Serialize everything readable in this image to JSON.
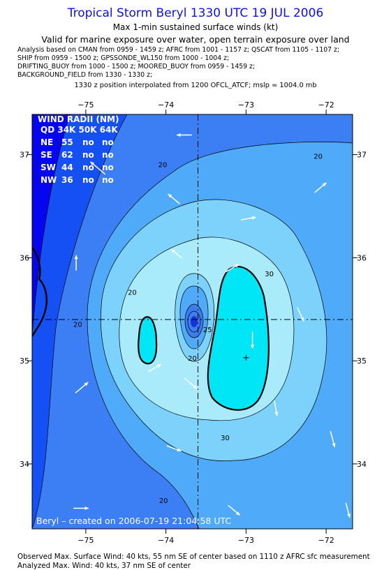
{
  "header": {
    "title": "Tropical Storm Beryl 1330 UTC 19 JUL 2006",
    "subtitle": "Max 1-min sustained surface winds (kt)",
    "validity": "Valid for marine exposure over water, open terrain exposure over land",
    "analysis_lines": [
      "Analysis based on  CMAN from 0959 - 1459 z;  AFRC from 1001 - 1157 z;  QSCAT from 1105 - 1107 z;",
      "SHIP from 0959 - 1500 z;  GPSSONDE_WL150 from 1000 - 1004 z;",
      "DRIFTING_BUOY from 1000 - 1500 z;  MOORED_BUOY from 0959 - 1459 z;",
      "BACKGROUND_FIELD from 1330 - 1330 z;"
    ],
    "position_note": "1330 z position interpolated from 1200 OFCL_ATCF; mslp = 1004.0 mb"
  },
  "map": {
    "lon_range": [
      -75.67,
      -71.67
    ],
    "lat_range": [
      33.37,
      37.39
    ],
    "lon_ticks": [
      -75,
      -74,
      -73,
      -72
    ],
    "lat_ticks": [
      37,
      36,
      35,
      34
    ],
    "lon_tick_labels": [
      "−75",
      "−74",
      "−73",
      "−72"
    ],
    "lat_tick_labels": [
      "37",
      "36",
      "35",
      "34"
    ],
    "storm_center": {
      "lon": -73.6,
      "lat": 35.4
    },
    "max_wind_marker": {
      "lon": -73.0,
      "lat": 35.03
    },
    "colors": {
      "deep": "#0505f0",
      "lt10": "#1550f5",
      "c10_20": "#3c7ff5",
      "c20_25": "#4faafa",
      "c25_30": "#7cd2fb",
      "c30_35": "#a9eafb",
      "ge35": "#00e6f6",
      "core": "#3a7df0",
      "eye": "#1733d6"
    },
    "contour_labels": [
      {
        "text": "20",
        "lon": -74.04,
        "lat": 36.88
      },
      {
        "text": "20",
        "lon": -72.1,
        "lat": 36.96
      },
      {
        "text": "20",
        "lon": -74.42,
        "lat": 35.64
      },
      {
        "text": "20",
        "lon": -75.1,
        "lat": 35.33
      },
      {
        "text": "20",
        "lon": -73.67,
        "lat": 35.0
      },
      {
        "text": "25",
        "lon": -73.48,
        "lat": 35.28
      },
      {
        "text": "30",
        "lon": -72.71,
        "lat": 35.82
      },
      {
        "text": "30",
        "lon": -73.26,
        "lat": 34.23
      },
      {
        "text": "20",
        "lon": -74.03,
        "lat": 33.62
      }
    ],
    "wind_vectors": [
      {
        "lon": -75.12,
        "lat": 35.95,
        "angle": 90,
        "len": 22
      },
      {
        "lon": -74.85,
        "lat": 36.87,
        "angle": 140,
        "len": 28
      },
      {
        "lon": -73.77,
        "lat": 37.19,
        "angle": 180,
        "len": 22
      },
      {
        "lon": -73.9,
        "lat": 36.57,
        "angle": 140,
        "len": 22
      },
      {
        "lon": -72.97,
        "lat": 36.38,
        "angle": 10,
        "len": 22
      },
      {
        "lon": -72.07,
        "lat": 36.68,
        "angle": 40,
        "len": 22
      },
      {
        "lon": -73.87,
        "lat": 36.04,
        "angle": 140,
        "len": 20
      },
      {
        "lon": -73.17,
        "lat": 35.9,
        "angle": 30,
        "len": 22
      },
      {
        "lon": -72.32,
        "lat": 35.45,
        "angle": 295,
        "len": 22
      },
      {
        "lon": -74.14,
        "lat": 34.93,
        "angle": 30,
        "len": 22
      },
      {
        "lon": -72.92,
        "lat": 35.2,
        "angle": 270,
        "len": 24
      },
      {
        "lon": -75.05,
        "lat": 34.74,
        "angle": 40,
        "len": 24
      },
      {
        "lon": -73.69,
        "lat": 34.78,
        "angle": 320,
        "len": 24
      },
      {
        "lon": -72.63,
        "lat": 34.54,
        "angle": 280,
        "len": 22
      },
      {
        "lon": -71.92,
        "lat": 34.24,
        "angle": 285,
        "len": 24
      },
      {
        "lon": -73.9,
        "lat": 34.15,
        "angle": 340,
        "len": 22
      },
      {
        "lon": -75.06,
        "lat": 33.57,
        "angle": 0,
        "len": 22
      },
      {
        "lon": -73.15,
        "lat": 33.55,
        "angle": 320,
        "len": 22
      },
      {
        "lon": -71.73,
        "lat": 33.55,
        "angle": 285,
        "len": 22
      }
    ],
    "wind_radii": {
      "title": "WIND RADII (NM)",
      "header": "QD 34K 50K 64K",
      "rows": [
        {
          "qd": "NE",
          "r34": "55",
          "r50": "no",
          "r64": "no"
        },
        {
          "qd": "SE",
          "r34": "62",
          "r50": "no",
          "r64": "no"
        },
        {
          "qd": "SW",
          "r34": "44",
          "r50": "no",
          "r64": "no"
        },
        {
          "qd": "NW",
          "r34": "36",
          "r50": "no",
          "r64": "no"
        }
      ]
    },
    "credit": "Beryl – created on 2006-07-19 21:04:58 UTC"
  },
  "footer": {
    "observed": "Observed Max. Surface Wind: 40 kts, 55 nm SE of center based on 1110 z AFRC sfc measurement",
    "analyzed": "Analyzed Max. Wind: 40 kts, 37 nm SE of center"
  }
}
